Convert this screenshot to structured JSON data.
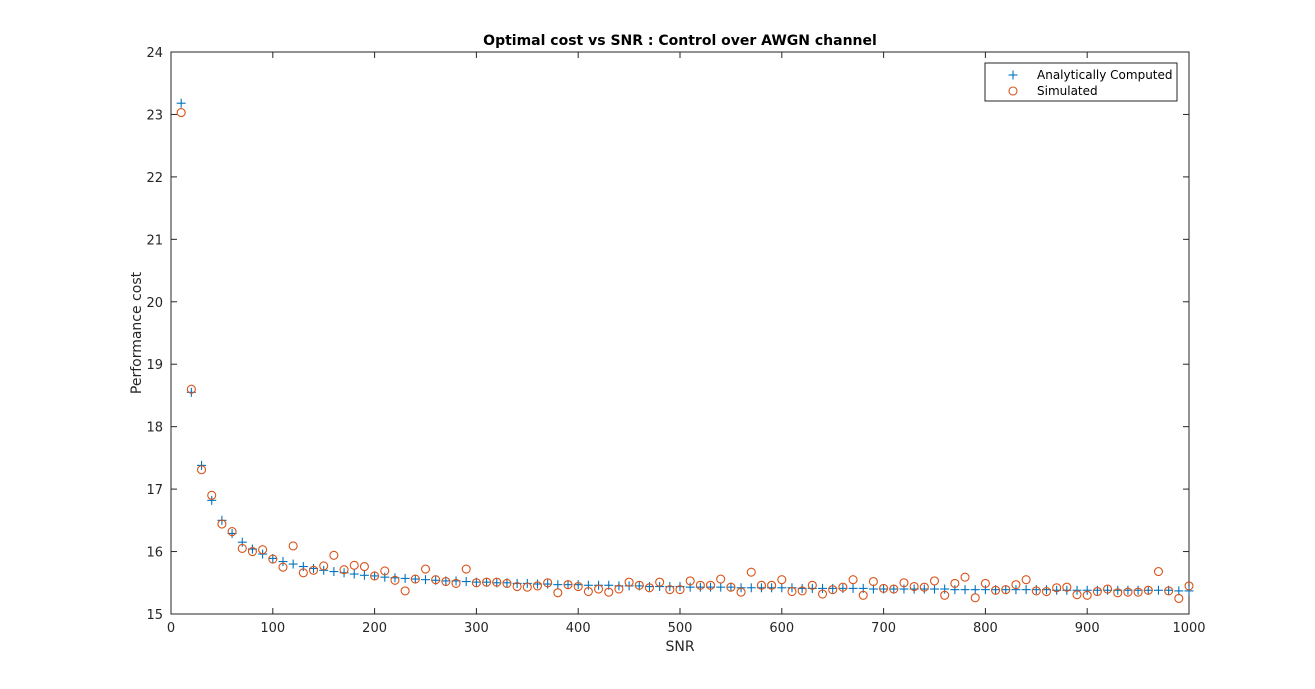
{
  "chart_data": {
    "type": "scatter",
    "title": "Optimal cost vs SNR : Control over AWGN channel",
    "xlabel": "SNR",
    "ylabel": "Performance cost",
    "xlim": [
      0,
      1000
    ],
    "ylim": [
      15,
      24
    ],
    "xticks": [
      0,
      100,
      200,
      300,
      400,
      500,
      600,
      700,
      800,
      900,
      1000
    ],
    "yticks": [
      15,
      16,
      17,
      18,
      19,
      20,
      21,
      22,
      23,
      24
    ],
    "grid": false,
    "legend_position": "top-right",
    "x": [
      10,
      20,
      30,
      40,
      50,
      60,
      70,
      80,
      90,
      100,
      110,
      120,
      130,
      140,
      150,
      160,
      170,
      180,
      190,
      200,
      210,
      220,
      230,
      240,
      250,
      260,
      270,
      280,
      290,
      300,
      310,
      320,
      330,
      340,
      350,
      360,
      370,
      380,
      390,
      400,
      410,
      420,
      430,
      440,
      450,
      460,
      470,
      480,
      490,
      500,
      510,
      520,
      530,
      540,
      550,
      560,
      570,
      580,
      590,
      600,
      610,
      620,
      630,
      640,
      650,
      660,
      670,
      680,
      690,
      700,
      710,
      720,
      730,
      740,
      750,
      760,
      770,
      780,
      790,
      800,
      810,
      820,
      830,
      840,
      850,
      860,
      870,
      880,
      890,
      900,
      910,
      920,
      930,
      940,
      950,
      960,
      970,
      980,
      990,
      1000
    ],
    "series": [
      {
        "name": "Analytically Computed",
        "marker": "plus",
        "color": "#0072BD",
        "values": [
          23.18,
          18.55,
          17.38,
          16.82,
          16.5,
          16.29,
          16.15,
          16.04,
          15.96,
          15.89,
          15.84,
          15.8,
          15.76,
          15.73,
          15.7,
          15.68,
          15.66,
          15.64,
          15.62,
          15.61,
          15.59,
          15.58,
          15.57,
          15.56,
          15.55,
          15.54,
          15.53,
          15.53,
          15.52,
          15.51,
          15.51,
          15.5,
          15.5,
          15.49,
          15.49,
          15.48,
          15.48,
          15.47,
          15.47,
          15.47,
          15.46,
          15.46,
          15.46,
          15.45,
          15.45,
          15.45,
          15.44,
          15.44,
          15.44,
          15.44,
          15.43,
          15.43,
          15.43,
          15.43,
          15.43,
          15.42,
          15.42,
          15.42,
          15.42,
          15.42,
          15.42,
          15.41,
          15.41,
          15.41,
          15.41,
          15.41,
          15.41,
          15.41,
          15.4,
          15.4,
          15.4,
          15.4,
          15.4,
          15.4,
          15.4,
          15.4,
          15.39,
          15.39,
          15.39,
          15.39,
          15.39,
          15.39,
          15.39,
          15.39,
          15.39,
          15.39,
          15.38,
          15.38,
          15.38,
          15.38,
          15.38,
          15.38,
          15.38,
          15.38,
          15.38,
          15.38,
          15.38,
          15.38,
          15.37,
          15.37
        ]
      },
      {
        "name": "Simulated",
        "marker": "circle",
        "color": "#D95319",
        "values": [
          23.03,
          18.6,
          17.31,
          16.9,
          16.44,
          16.32,
          16.05,
          16.0,
          16.03,
          15.88,
          15.75,
          16.09,
          15.66,
          15.7,
          15.77,
          15.94,
          15.71,
          15.78,
          15.76,
          15.61,
          15.69,
          15.54,
          15.37,
          15.56,
          15.72,
          15.55,
          15.52,
          15.49,
          15.72,
          15.5,
          15.51,
          15.51,
          15.49,
          15.44,
          15.43,
          15.45,
          15.5,
          15.34,
          15.47,
          15.44,
          15.36,
          15.4,
          15.35,
          15.4,
          15.51,
          15.46,
          15.42,
          15.51,
          15.39,
          15.39,
          15.53,
          15.46,
          15.46,
          15.56,
          15.43,
          15.35,
          15.67,
          15.46,
          15.46,
          15.55,
          15.36,
          15.37,
          15.46,
          15.32,
          15.39,
          15.43,
          15.55,
          15.3,
          15.52,
          15.41,
          15.4,
          15.5,
          15.44,
          15.43,
          15.53,
          15.3,
          15.49,
          15.59,
          15.26,
          15.49,
          15.38,
          15.39,
          15.47,
          15.55,
          15.37,
          15.36,
          15.42,
          15.43,
          15.31,
          15.3,
          15.36,
          15.4,
          15.34,
          15.35,
          15.35,
          15.38,
          15.68,
          15.37,
          15.25,
          15.45
        ]
      }
    ]
  }
}
